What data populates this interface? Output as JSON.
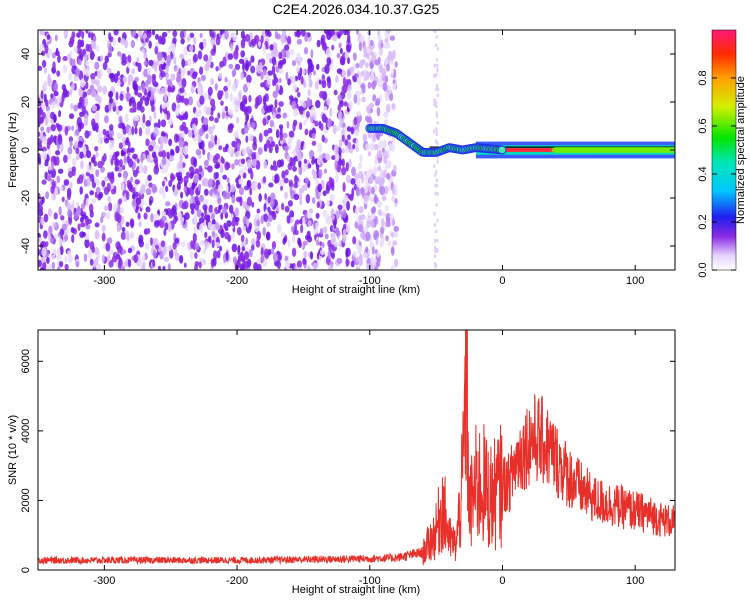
{
  "title": "C2E4.2026.034.10.37.G25",
  "chart_data": [
    {
      "type": "heatmap",
      "xlabel": "Height of straight line (km)",
      "ylabel": "Frequency (Hz)",
      "xlim": [
        -350,
        130
      ],
      "ylim": [
        -50,
        50
      ],
      "xticks": [
        -300,
        -200,
        -100,
        0,
        100
      ],
      "yticks": [
        -40,
        -20,
        0,
        20,
        40
      ],
      "colorbar": {
        "label": "Normalized spectral amplitude",
        "range": [
          0,
          1
        ],
        "ticks": [
          0.0,
          0.2,
          0.4,
          0.6,
          0.8
        ],
        "tick_labels": [
          "0.0",
          "0.2",
          "0.4",
          "0.6",
          "0.8"
        ]
      },
      "noise_region": {
        "x_from": -350,
        "x_to": -80,
        "amplitude": 0.15
      },
      "tone_track": [
        {
          "x": -100,
          "f": 9
        },
        {
          "x": -90,
          "f": 9
        },
        {
          "x": -80,
          "f": 7
        },
        {
          "x": -70,
          "f": 3
        },
        {
          "x": -60,
          "f": -1
        },
        {
          "x": -50,
          "f": -1
        },
        {
          "x": -40,
          "f": 1
        },
        {
          "x": -30,
          "f": 0
        },
        {
          "x": -20,
          "f": 1
        },
        {
          "x": 0,
          "f": 0
        },
        {
          "x": 130,
          "f": 0
        }
      ]
    },
    {
      "type": "line",
      "xlabel": "Height of straight line (km)",
      "ylabel": "SNR (10 * v/v)",
      "xlim": [
        -350,
        130
      ],
      "ylim": [
        0,
        6900
      ],
      "xticks": [
        -300,
        -200,
        -100,
        0,
        100
      ],
      "yticks": [
        0,
        2000,
        4000,
        6000
      ],
      "series": [
        {
          "color": "#e8302a",
          "x": [
            -350,
            -300,
            -250,
            -200,
            -150,
            -110,
            -80,
            -60,
            -50,
            -45,
            -40,
            -35,
            -30,
            -27,
            -25,
            -20,
            -15,
            -10,
            -5,
            0,
            5,
            10,
            15,
            20,
            25,
            30,
            35,
            40,
            50,
            60,
            70,
            80,
            90,
            100,
            110,
            120,
            130
          ],
          "y": [
            280,
            280,
            280,
            280,
            300,
            320,
            350,
            500,
            1100,
            1900,
            900,
            700,
            2500,
            6300,
            1700,
            2400,
            2500,
            2100,
            2200,
            2500,
            2500,
            3100,
            3400,
            3700,
            3800,
            3700,
            3500,
            3200,
            2700,
            2300,
            2000,
            1900,
            1800,
            1700,
            1600,
            1450,
            1380
          ]
        }
      ]
    }
  ]
}
